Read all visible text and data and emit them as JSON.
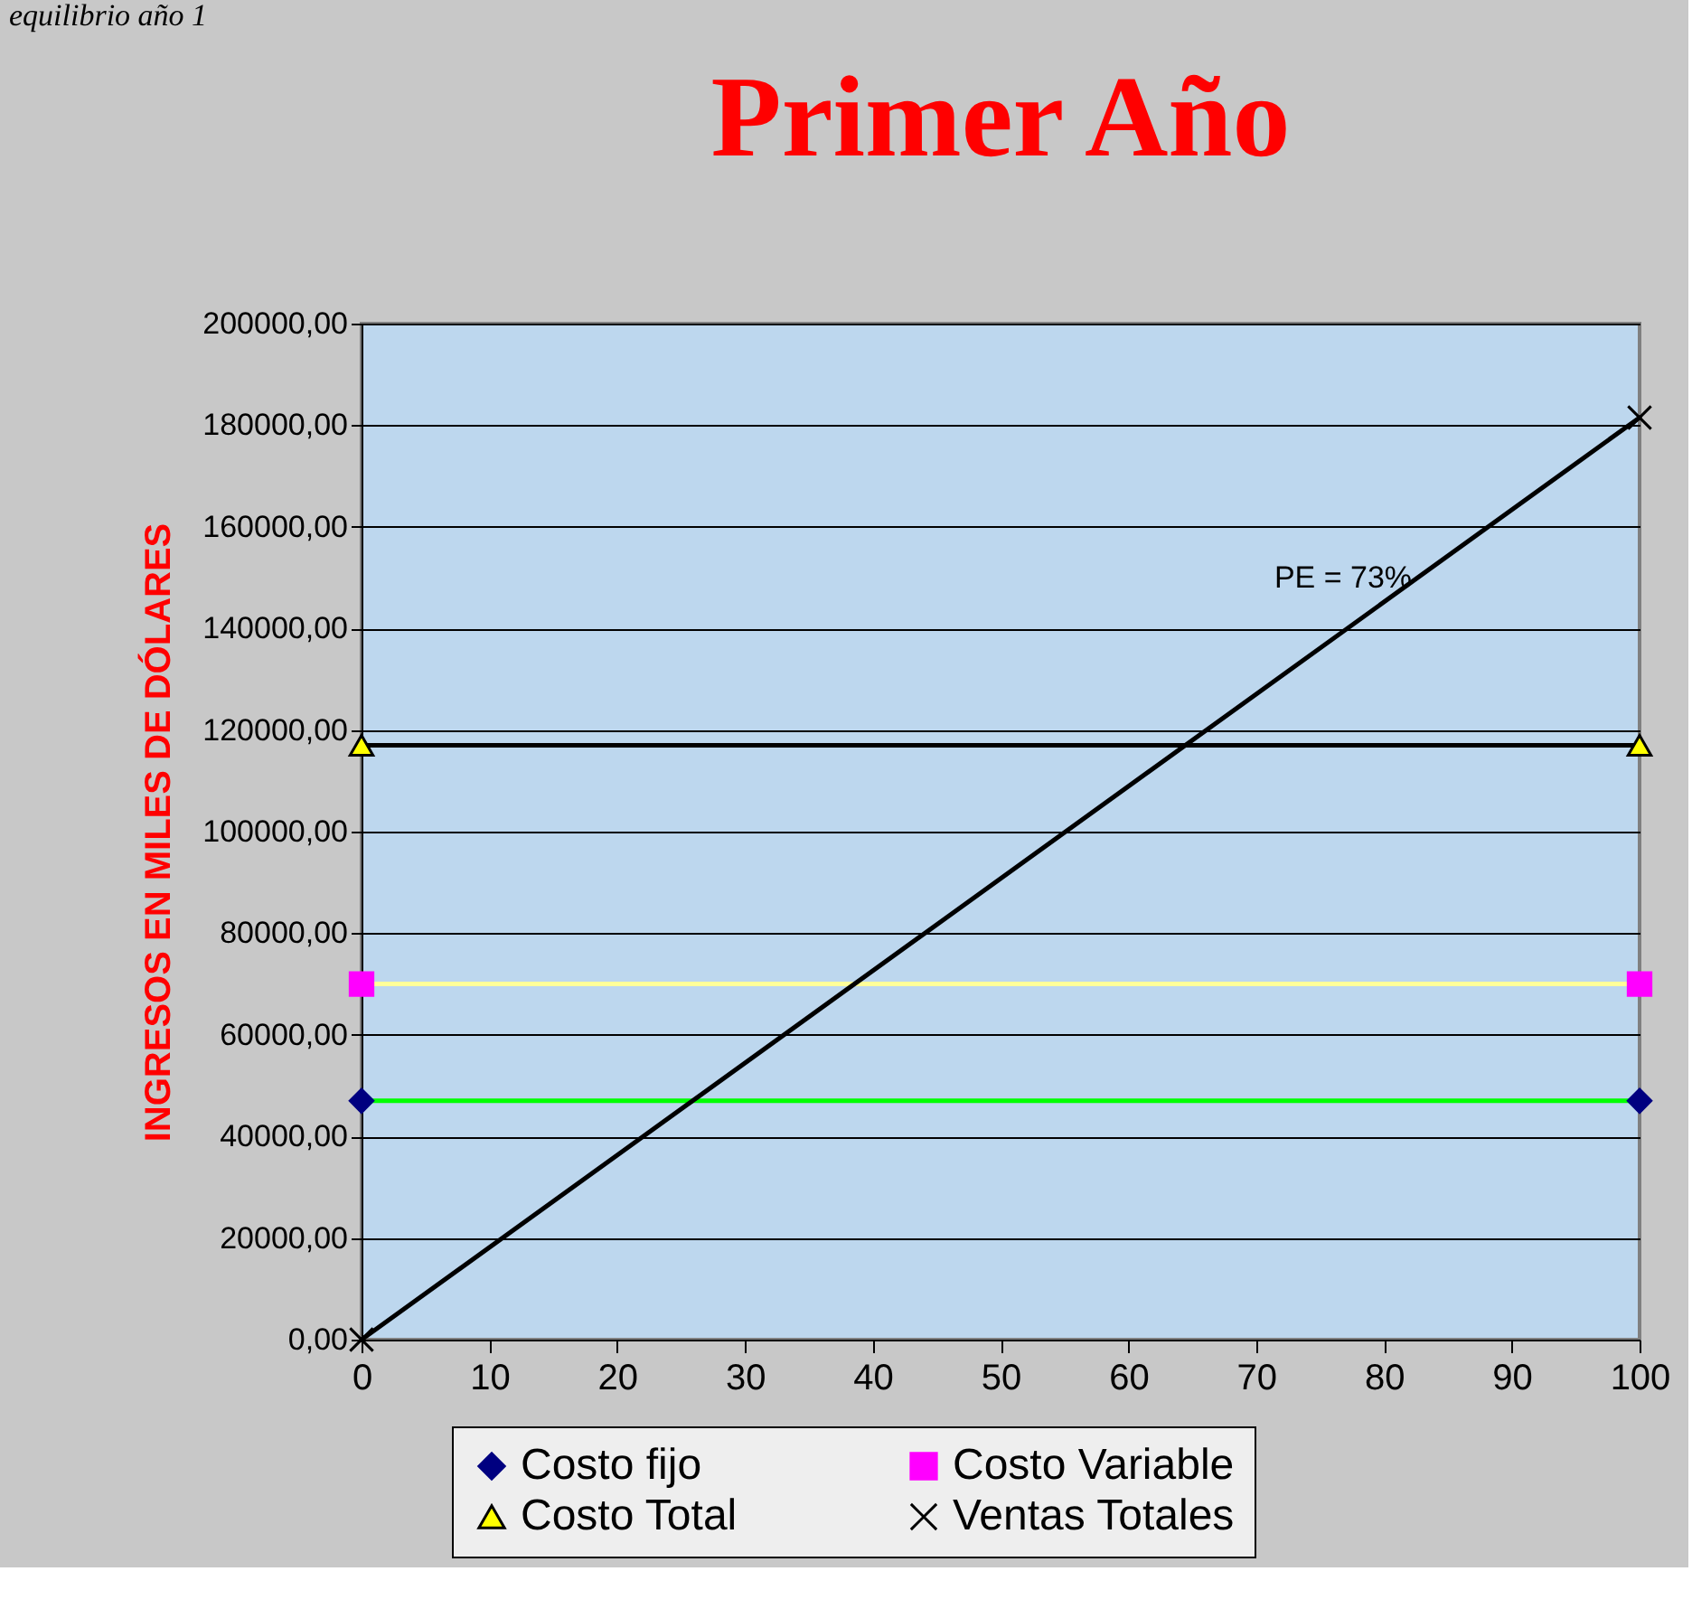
{
  "chart_data": {
    "type": "line",
    "title": "Primer Año",
    "ylabel": "INGRESOS EN MILES DE DÓLARES",
    "x": [
      0,
      100
    ],
    "series": [
      {
        "name": "Costo fijo",
        "color": "#00ff00",
        "colors": [
          "#000080",
          "#000080"
        ],
        "marker": "diamond",
        "values": [
          47000,
          47000
        ]
      },
      {
        "name": "Costo Variable",
        "color": "#ffff99",
        "colors": [
          "#ff00ff",
          "#ff00ff"
        ],
        "marker": "square",
        "values": [
          70000,
          70000
        ]
      },
      {
        "name": "Costo Total",
        "color": "#000000",
        "colors": [
          "#ffff00",
          "#ffff00"
        ],
        "marker": "triangle",
        "values": [
          117000,
          117000
        ]
      },
      {
        "name": "Ventas Totales",
        "color": "#000000",
        "colors": [
          "#000000",
          "#000000"
        ],
        "marker": "cross",
        "values": [
          0,
          181500
        ]
      }
    ],
    "xlim": [
      0,
      100
    ],
    "xticks": [
      0,
      10,
      20,
      30,
      40,
      50,
      60,
      70,
      80,
      90,
      100
    ],
    "ylim": [
      0,
      200000
    ],
    "yticks": [
      {
        "value": 0,
        "label": "0,00"
      },
      {
        "value": 20000,
        "label": "20000,00"
      },
      {
        "value": 40000,
        "label": "40000,00"
      },
      {
        "value": 60000,
        "label": "60000,00"
      },
      {
        "value": 80000,
        "label": "80000,00"
      },
      {
        "value": 100000,
        "label": "100000,00"
      },
      {
        "value": 120000,
        "label": "120000,00"
      },
      {
        "value": 140000,
        "label": "140000,00"
      },
      {
        "value": 160000,
        "label": "160000,00"
      },
      {
        "value": 180000,
        "label": "180000,00"
      },
      {
        "value": 200000,
        "label": "200000,00"
      }
    ],
    "grid": "y",
    "legend": "bottom",
    "line_style": "solid",
    "annotations": [
      "equilibrio año 1",
      "PE = 73%"
    ]
  }
}
